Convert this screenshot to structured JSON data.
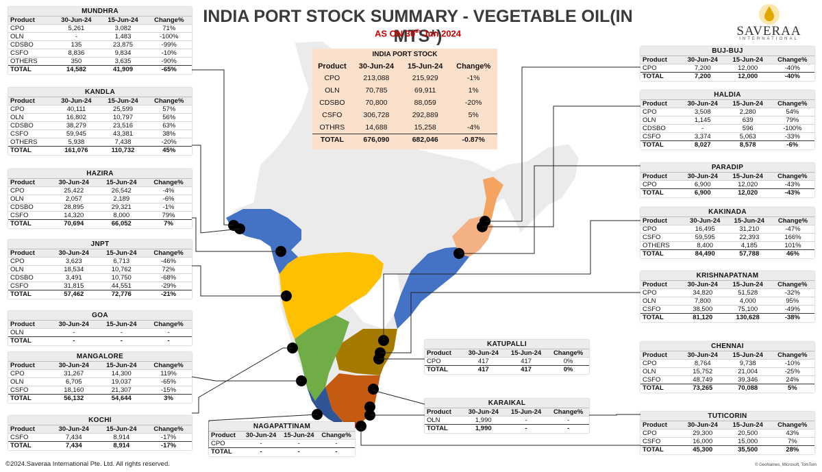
{
  "title": "INDIA PORT STOCK SUMMARY - VEGETABLE OIL(IN MTS*)",
  "subtitle_prefix": "AS ON 30",
  "subtitle_sup": "th",
  "subtitle_suffix": " Jun 2024",
  "logo": {
    "name": "SAVERAA",
    "sub": "INTERNATIONAL"
  },
  "footer": {
    "copyright": "©2024.Saveraa International Pte. Ltd. All rights reserved.",
    "attribution": "© GeoNames, Microsoft, TomTom"
  },
  "columns": [
    "Product",
    "30-Jun-24",
    "15-Jun-24",
    "Change%"
  ],
  "summary": {
    "title": "INDIA PORT STOCK",
    "rows": [
      [
        "CPO",
        "213,088",
        "215,929",
        "-1%"
      ],
      [
        "OLN",
        "70,785",
        "69,911",
        "1%"
      ],
      [
        "CDSBO",
        "70,800",
        "88,059",
        "-20%"
      ],
      [
        "CSFO",
        "306,728",
        "292,889",
        "5%"
      ],
      [
        "OTHRS",
        "14,688",
        "15,258",
        "-4%"
      ]
    ],
    "total": [
      "TOTAL",
      "676,090",
      "682,046",
      "-0.87%"
    ]
  },
  "ports": [
    {
      "id": "mundhra",
      "name": "MUNDHRA",
      "rows": [
        [
          "CPO",
          "5,261",
          "3,082",
          "71%"
        ],
        [
          "OLN",
          "-",
          "1,483",
          "-100%"
        ],
        [
          "CDSBO",
          "135",
          "23,875",
          "-99%"
        ],
        [
          "CSFO",
          "8,836",
          "9,834",
          "-10%"
        ],
        [
          "OTHERS",
          "350",
          "3,635",
          "-90%"
        ]
      ],
      "total": [
        "TOTAL",
        "14,582",
        "41,909",
        "-65%"
      ]
    },
    {
      "id": "kandla",
      "name": "KANDLA",
      "rows": [
        [
          "CPO",
          "40,111",
          "25,599",
          "57%"
        ],
        [
          "OLN",
          "16,802",
          "10,797",
          "56%"
        ],
        [
          "CDSBO",
          "38,279",
          "23,516",
          "63%"
        ],
        [
          "CSFO",
          "59,945",
          "43,381",
          "38%"
        ],
        [
          "OTHERS",
          "5,938",
          "7,438",
          "-20%"
        ]
      ],
      "total": [
        "TOTAL",
        "161,076",
        "110,732",
        "45%"
      ]
    },
    {
      "id": "hazira",
      "name": "HAZIRA",
      "rows": [
        [
          "CPO",
          "25,422",
          "26,542",
          "-4%"
        ],
        [
          "OLN",
          "2,057",
          "2,189",
          "-6%"
        ],
        [
          "CDSBO",
          "28,895",
          "29,321",
          "-1%"
        ],
        [
          "CSFO",
          "14,320",
          "8,000",
          "79%"
        ]
      ],
      "total": [
        "TOTAL",
        "70,694",
        "66,052",
        "7%"
      ]
    },
    {
      "id": "jnpt",
      "name": "JNPT",
      "rows": [
        [
          "CPO",
          "3,623",
          "6,713",
          "-46%"
        ],
        [
          "OLN",
          "18,534",
          "10,762",
          "72%"
        ],
        [
          "CDSBO",
          "3,491",
          "10,750",
          "-68%"
        ],
        [
          "CSFO",
          "31,815",
          "44,551",
          "-29%"
        ]
      ],
      "total": [
        "TOTAL",
        "57,462",
        "72,776",
        "-21%"
      ]
    },
    {
      "id": "goa",
      "name": "GOA",
      "rows": [
        [
          "OLN",
          "-",
          "-",
          "-"
        ]
      ],
      "total": [
        "TOTAL",
        "-",
        "-",
        "-"
      ]
    },
    {
      "id": "mangalore",
      "name": "MANGALORE",
      "rows": [
        [
          "CPO",
          "31,267",
          "14,300",
          "119%"
        ],
        [
          "OLN",
          "6,705",
          "19,037",
          "-65%"
        ],
        [
          "CSFO",
          "18,160",
          "21,307",
          "-15%"
        ]
      ],
      "total": [
        "TOTAL",
        "56,132",
        "54,644",
        "3%"
      ]
    },
    {
      "id": "kochi",
      "name": "KOCHI",
      "rows": [
        [
          "CSFO",
          "7,434",
          "8,914",
          "-17%"
        ]
      ],
      "total": [
        "TOTAL",
        "7,434",
        "8,914",
        "-17%"
      ]
    },
    {
      "id": "nagapattinam",
      "name": "NAGAPATTINAM",
      "rows": [
        [
          "CPO",
          "-",
          "-",
          "-"
        ]
      ],
      "total": [
        "TOTAL",
        "-",
        "-",
        "-"
      ]
    },
    {
      "id": "katupalli",
      "name": "KATUPALLI",
      "rows": [
        [
          "CPO",
          "417",
          "417",
          "0%"
        ]
      ],
      "total": [
        "TOTAL",
        "417",
        "417",
        "0%"
      ]
    },
    {
      "id": "karaikal",
      "name": "KARAIKAL",
      "rows": [
        [
          "OLN",
          "1,990",
          "-",
          "-"
        ]
      ],
      "total": [
        "TOTAL",
        "1,990",
        "-",
        "-"
      ]
    },
    {
      "id": "bujbuj",
      "name": "BUJ-BUJ",
      "rows": [
        [
          "CPO",
          "7,200",
          "12,000",
          "-40%"
        ]
      ],
      "total": [
        "TOTAL",
        "7,200",
        "12,000",
        "-40%"
      ]
    },
    {
      "id": "haldia",
      "name": "HALDIA",
      "rows": [
        [
          "CPO",
          "3,508",
          "2,280",
          "54%"
        ],
        [
          "OLN",
          "1,145",
          "639",
          "79%"
        ],
        [
          "CDSBO",
          "-",
          "596",
          "-100%"
        ],
        [
          "CSFO",
          "3,374",
          "5,063",
          "-33%"
        ]
      ],
      "total": [
        "TOTAL",
        "8,027",
        "8,578",
        "-6%"
      ]
    },
    {
      "id": "paradip",
      "name": "PARADIP",
      "rows": [
        [
          "CPO",
          "6,900",
          "12,020",
          "-43%"
        ]
      ],
      "total": [
        "TOTAL",
        "6,900",
        "12,020",
        "-43%"
      ]
    },
    {
      "id": "kakinada",
      "name": "KAKINADA",
      "rows": [
        [
          "CPO",
          "16,495",
          "31,210",
          "-47%"
        ],
        [
          "CSFO",
          "59,595",
          "22,393",
          "166%"
        ],
        [
          "OTHERS",
          "8,400",
          "4,185",
          "101%"
        ]
      ],
      "total": [
        "TOTAL",
        "84,490",
        "57,788",
        "46%"
      ]
    },
    {
      "id": "krishnapatnam",
      "name": "KRISHNAPATNAM",
      "rows": [
        [
          "CPO",
          "34,820",
          "51,528",
          "-32%"
        ],
        [
          "OLN",
          "7,800",
          "4,000",
          "95%"
        ],
        [
          "CSFO",
          "38,500",
          "75,100",
          "-49%"
        ]
      ],
      "total": [
        "TOTAL",
        "81,120",
        "130,628",
        "-38%"
      ]
    },
    {
      "id": "chennai",
      "name": "CHENNAI",
      "rows": [
        [
          "CPO",
          "8,764",
          "9,738",
          "-10%"
        ],
        [
          "OLN",
          "15,752",
          "21,004",
          "-25%"
        ],
        [
          "CSFO",
          "48,749",
          "39,346",
          "24%"
        ]
      ],
      "total": [
        "TOTAL",
        "73,265",
        "70,088",
        "5%"
      ]
    },
    {
      "id": "tuticorin",
      "name": "TUTICORIN",
      "rows": [
        [
          "CPO",
          "29,300",
          "20,500",
          "43%"
        ],
        [
          "CSFO",
          "16,000",
          "15,000",
          "7%"
        ]
      ],
      "total": [
        "TOTAL",
        "45,300",
        "35,500",
        "28%"
      ]
    }
  ],
  "colors": {
    "gujarat": "#4472c4",
    "maharashtra": "#ffc000",
    "karnataka": "#70ad47",
    "andhra": "#4472c4",
    "tamilnadu": "#c55a11",
    "telangana_ap_south": "#a57a00",
    "kerala": "#2f5597",
    "westbengal": "#f4a460",
    "odisha": "#f4b183",
    "summary_bg": "#fbe0cb",
    "title": "#3a3a3a",
    "subtitle": "#d10000"
  }
}
